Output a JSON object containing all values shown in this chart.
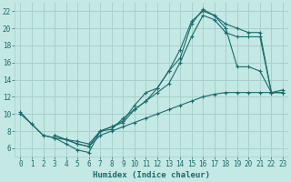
{
  "xlabel": "Humidex (Indice chaleur)",
  "bg_color": "#c4e8e4",
  "grid_color": "#a8d0cc",
  "line_color": "#1a6b6b",
  "xlim": [
    -0.5,
    23.5
  ],
  "ylim": [
    5.0,
    23.0
  ],
  "yticks": [
    6,
    8,
    10,
    12,
    14,
    16,
    18,
    20,
    22
  ],
  "xticks": [
    0,
    1,
    2,
    3,
    4,
    5,
    6,
    7,
    8,
    9,
    10,
    11,
    12,
    13,
    14,
    15,
    16,
    17,
    18,
    19,
    20,
    21,
    22,
    23
  ],
  "series": [
    {
      "x": [
        0,
        1,
        2,
        3,
        4,
        5,
        6,
        7,
        8,
        9,
        10,
        11,
        12,
        13,
        14,
        15,
        16,
        17,
        18,
        19,
        20,
        21,
        22,
        23
      ],
      "y": [
        10.2,
        8.8,
        7.5,
        7.2,
        6.5,
        5.8,
        5.5,
        8.0,
        8.2,
        9.5,
        10.5,
        11.5,
        13.0,
        15.0,
        16.5,
        20.5,
        22.2,
        21.5,
        20.0,
        15.5,
        15.5,
        15.0,
        12.5,
        12.5
      ]
    },
    {
      "x": [
        3,
        4,
        5,
        6,
        7,
        8,
        9,
        10,
        11,
        12,
        13,
        14,
        15,
        16,
        17,
        18,
        19,
        20,
        21,
        22,
        23
      ],
      "y": [
        7.5,
        7.0,
        6.5,
        6.2,
        8.0,
        8.5,
        9.2,
        11.0,
        12.5,
        13.0,
        15.0,
        17.5,
        20.8,
        22.0,
        21.5,
        20.5,
        20.0,
        19.5,
        19.5,
        12.5,
        12.5
      ]
    },
    {
      "x": [
        3,
        4,
        5,
        6,
        7,
        8,
        9,
        10,
        11,
        12,
        13,
        14,
        15,
        16,
        17,
        18,
        19,
        20,
        21,
        22,
        23
      ],
      "y": [
        7.5,
        7.0,
        6.8,
        6.5,
        8.0,
        8.5,
        9.0,
        10.5,
        11.5,
        12.5,
        13.5,
        16.0,
        19.0,
        21.5,
        21.0,
        19.5,
        19.0,
        19.0,
        19.0,
        12.5,
        12.5
      ]
    },
    {
      "x": [
        0,
        1,
        2,
        3,
        4,
        5,
        6,
        7,
        8,
        9,
        10,
        11,
        12,
        13,
        14,
        15,
        16,
        17,
        18,
        19,
        20,
        21,
        22,
        23
      ],
      "y": [
        10.0,
        8.8,
        7.5,
        7.2,
        7.0,
        6.5,
        6.2,
        7.5,
        8.0,
        8.5,
        9.0,
        9.5,
        10.0,
        10.5,
        11.0,
        11.5,
        12.0,
        12.3,
        12.5,
        12.5,
        12.5,
        12.5,
        12.5,
        12.8
      ]
    }
  ]
}
